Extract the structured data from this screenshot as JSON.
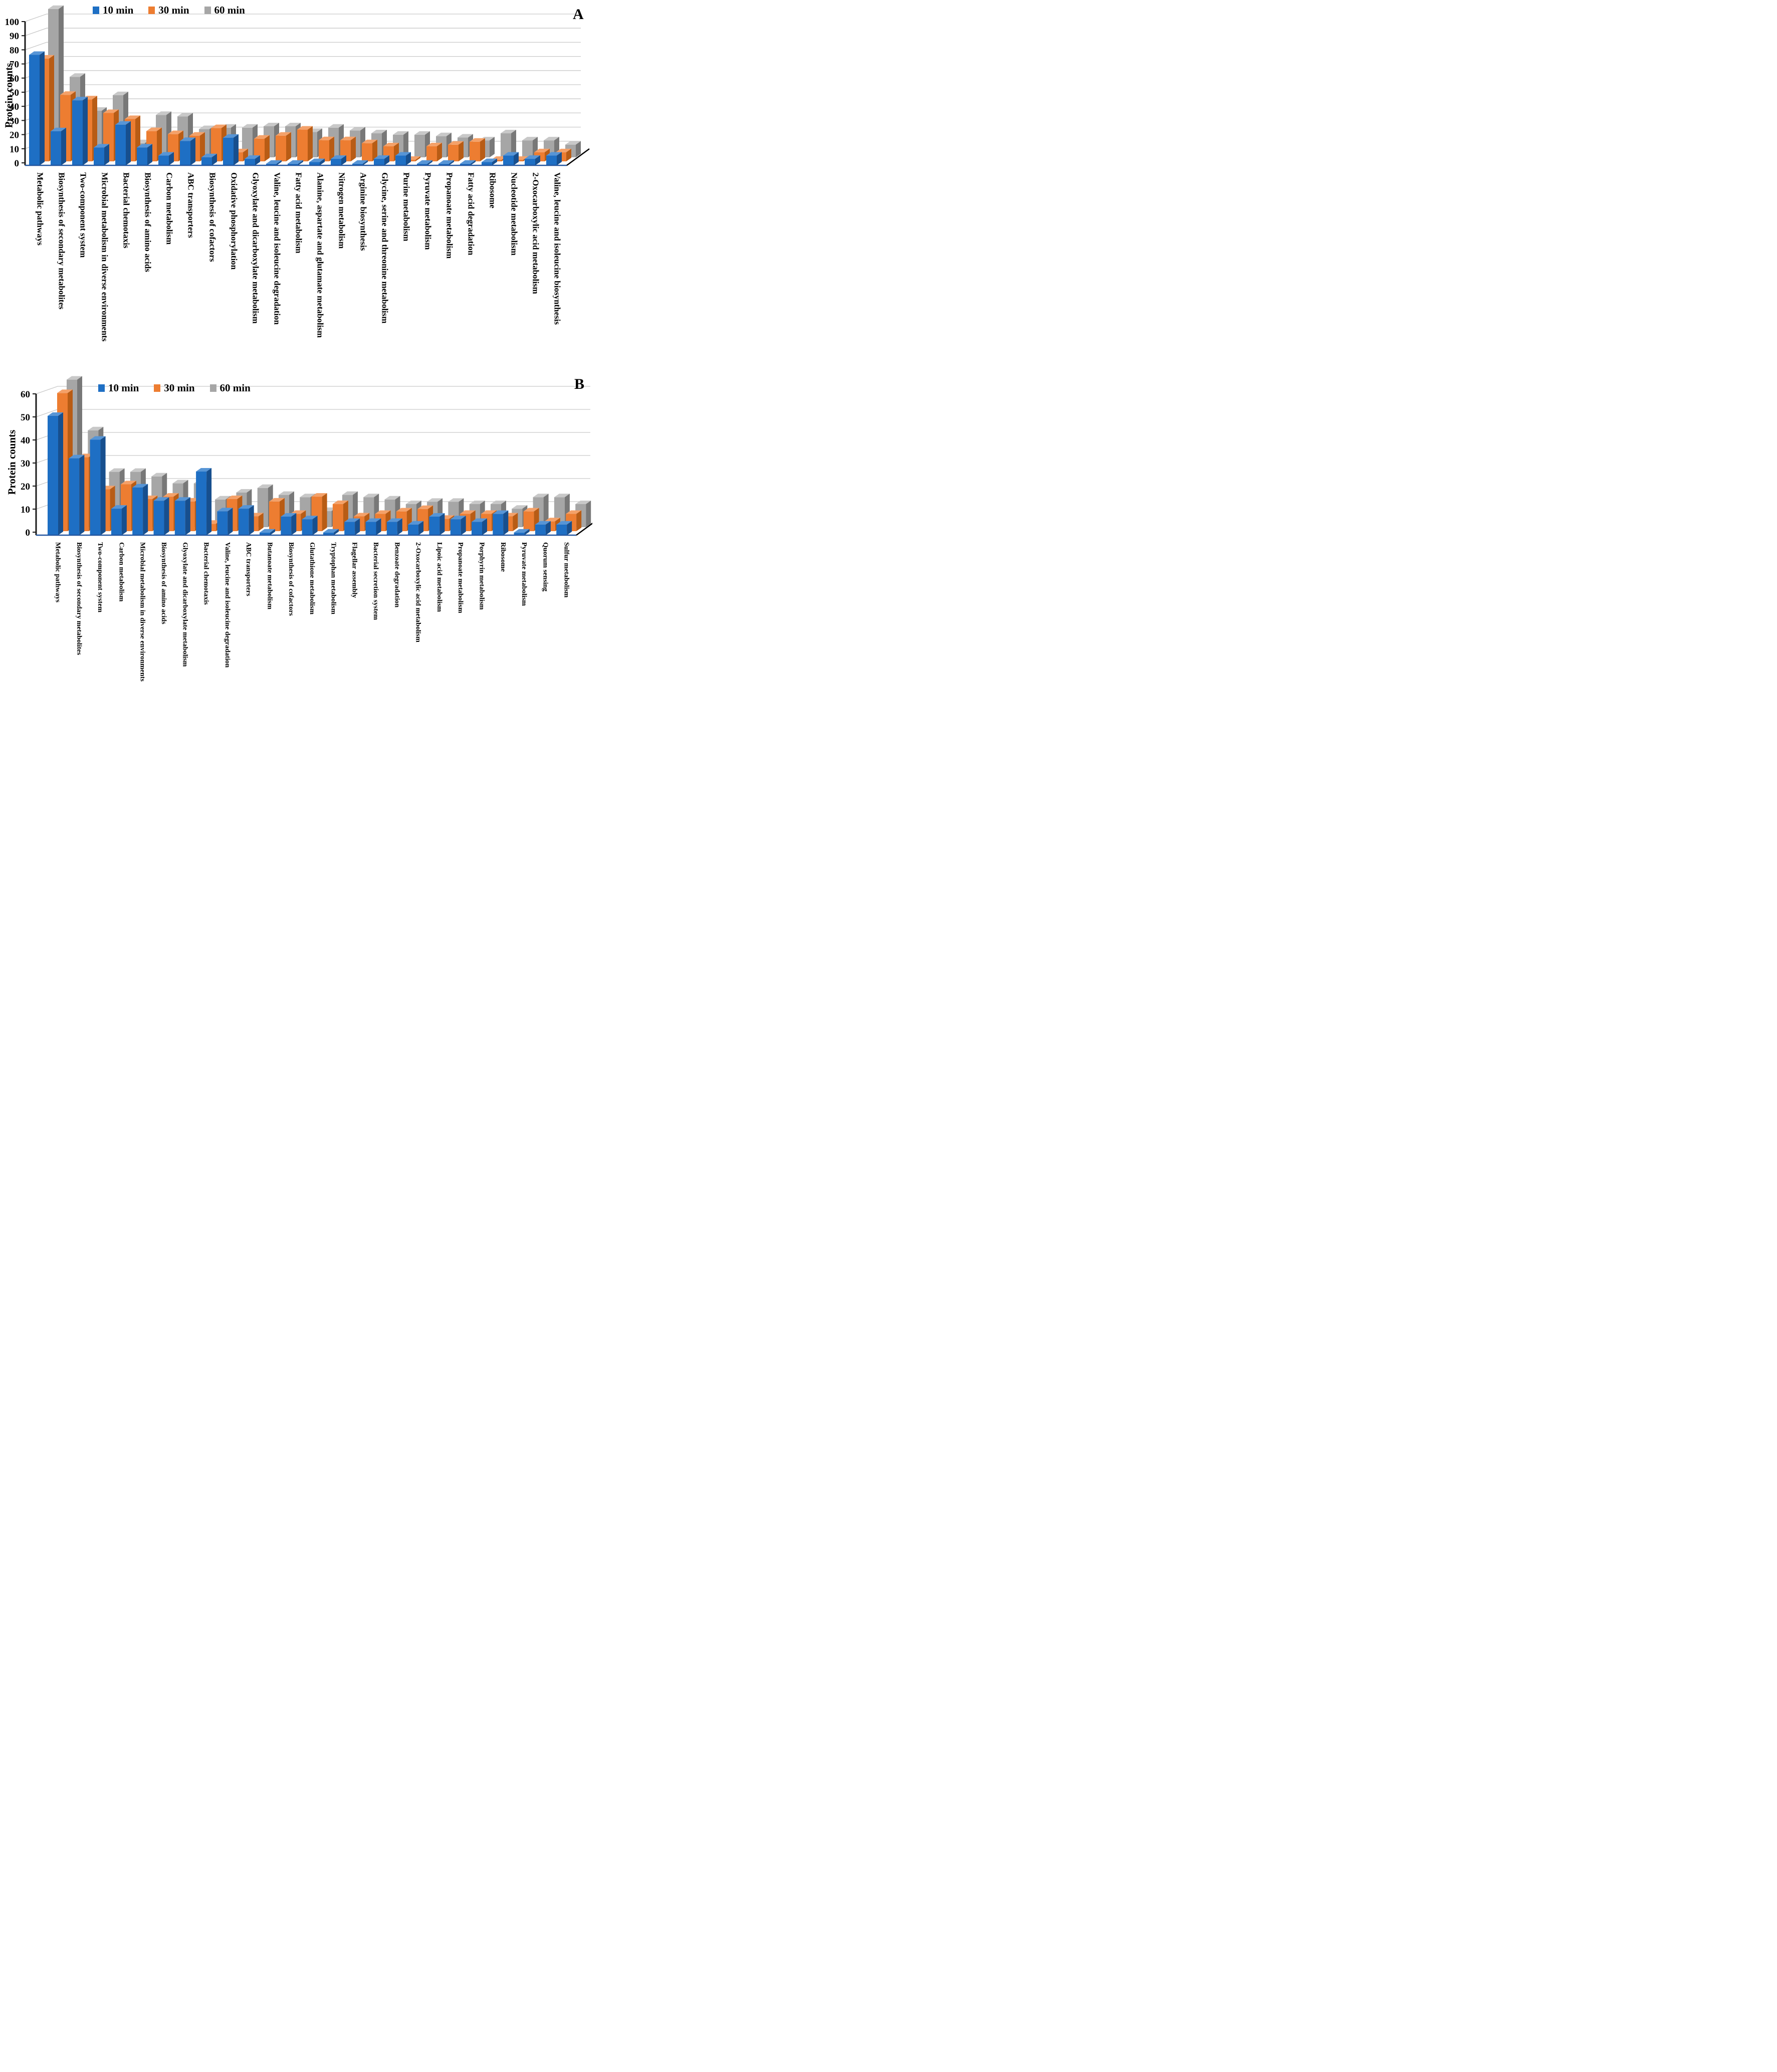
{
  "figure": {
    "description": "Two-panel 3D clustered column figure of KEGG pathway protein counts at three plasma exposure times",
    "panels": [
      "A",
      "B"
    ]
  },
  "chart_data": [
    {
      "type": "bar",
      "style": "3d-clustered-column",
      "panel_label": "A",
      "ylabel": "Protein counts",
      "xlabel": "",
      "ylim": [
        0,
        100
      ],
      "ytick_step": 10,
      "ytick_labels": [
        "0",
        "10",
        "20",
        "30",
        "40",
        "50",
        "60",
        "70",
        "80",
        "90",
        "100"
      ],
      "grid": true,
      "legend_position": "top-inside-left",
      "series_names": [
        "10 min",
        "30 min",
        "60 min"
      ],
      "series_colors": {
        "10 min": "#1E6FC4",
        "30 min": "#ED7D31",
        "60 min": "#A6A6A6"
      },
      "categories": [
        "Metabolic pathways",
        "Biosynthesis of secondary metabolites",
        "Two-component system",
        "Microbial metabolism in diverse environments",
        "Bacterial chemotaxis",
        "Biosynthesis of amino acids",
        "Carbon metabolism",
        "ABC transporters",
        "Biosynthesis of cofactors",
        "Oxidative phosphorylation",
        "Glyoxylate and dicarboxylate metabolism",
        "Valine, leucine and isoleucine degradation",
        "Fatty acid metabolism",
        "Alanine, aspartate and glutamate metabolism",
        "Nitrogen metabolism",
        "Arginine biosynthesis",
        "Glycine, serine and threonine metabolism",
        "Purine metabolism",
        "Pyruvate metabolism",
        "Propanoate metabolism",
        "Fatty acid degradation",
        "Ribosome",
        "Nucleotide metabolism",
        "2-Oxocarboxylic acid metabolism",
        "Valine, leucine and isoleucine biosynthesis"
      ],
      "series": [
        {
          "name": "10 min",
          "values": [
            68,
            21,
            40,
            11,
            25,
            11,
            6,
            15,
            5,
            17,
            4,
            1,
            1,
            2,
            4,
            1,
            4,
            6,
            1,
            1,
            1,
            2,
            6,
            4,
            6
          ]
        },
        {
          "name": "30 min",
          "values": [
            68,
            44,
            41,
            32,
            28,
            20,
            18,
            17,
            22,
            6,
            15,
            17,
            21,
            14,
            14,
            12,
            10,
            1,
            10,
            11,
            13,
            1,
            1,
            6,
            6
          ]
        },
        {
          "name": "60 min",
          "values": [
            105,
            57,
            33,
            44,
            10,
            30,
            29,
            20,
            21,
            21,
            22,
            22,
            18,
            21,
            19,
            17,
            16,
            16,
            15,
            14,
            12,
            17,
            12,
            12,
            9
          ]
        }
      ]
    },
    {
      "type": "bar",
      "style": "3d-clustered-column",
      "panel_label": "B",
      "ylabel": "Protein counts",
      "xlabel": "",
      "ylim": [
        0,
        60
      ],
      "ytick_step": 10,
      "ytick_labels": [
        "0",
        "10",
        "20",
        "30",
        "40",
        "50",
        "60"
      ],
      "grid": true,
      "legend_position": "top-inside-left",
      "series_names": [
        "10 min",
        "30 min",
        "60 min"
      ],
      "series_colors": {
        "10 min": "#1E6FC4",
        "30 min": "#ED7D31",
        "60 min": "#A6A6A6"
      },
      "categories": [
        "Metabolic pathways",
        "Biosynthesis of secondary metabolites",
        "Two-component system",
        "Carbon metabolism",
        "Microbial metabolism in diverse environments",
        "Biosynthesis of amino acids",
        "Glyoxylate and dicarboxylate metabolism",
        "Bacterial chemotaxis",
        "Valine, leucine and isoleucine degradation",
        "ABC transporters",
        "Butanoate metabolism",
        "Biosynthesis of cofactors",
        "Glutathione metabolism",
        "Tryptophan metabolism",
        "Flagellar assembly",
        "Bacterial secretion system",
        "Benzoate degradation",
        "2-Oxocarboxylic acid metabolism",
        "Lipoic acid metabolism",
        "Propanoate metabolism",
        "Porphyrin metabolism",
        "Ribosome",
        "Pyruvate metabolism",
        "Quorum sensing",
        "Sulfur metabolism"
      ],
      "series": [
        {
          "name": "10 min",
          "values": [
            45,
            29,
            36,
            10,
            18,
            13,
            13,
            24,
            9,
            10,
            1,
            7,
            6,
            1,
            5,
            5,
            5,
            4,
            7,
            6,
            5,
            8,
            1,
            4,
            4
          ]
        },
        {
          "name": "30 min",
          "values": [
            56,
            30,
            17,
            19,
            13,
            14,
            12,
            3,
            13,
            6,
            12,
            7,
            14,
            11,
            6,
            7,
            8,
            9,
            5,
            7,
            7,
            6,
            8,
            4,
            7
          ]
        },
        {
          "name": "60 min",
          "values": [
            64,
            42,
            24,
            24,
            22,
            19,
            19,
            12,
            15,
            17,
            14,
            13,
            7,
            14,
            13,
            12,
            10,
            11,
            11,
            10,
            10,
            8,
            13,
            13,
            10
          ]
        }
      ]
    }
  ]
}
